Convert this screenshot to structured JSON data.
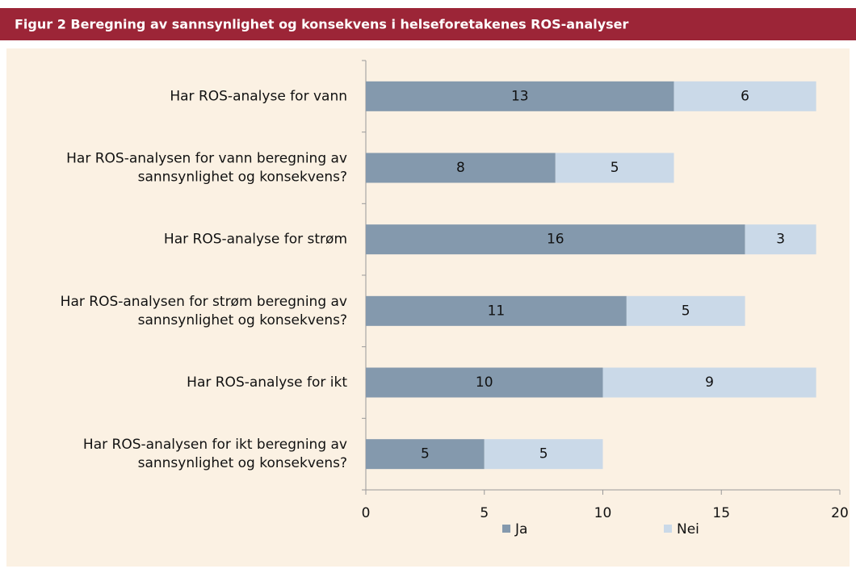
{
  "chart_data": {
    "type": "stacked_bar_horizontal",
    "title": "Figur 2 Beregning av sannsynlighet og konsekvens i helseforetakenes ROS-analyser",
    "categories": [
      [
        "Har ROS-analyse for vann"
      ],
      [
        "Har ROS-analysen for vann beregning av",
        "sannsynlighet og konsekvens?"
      ],
      [
        "Har ROS-analyse for strøm"
      ],
      [
        "Har ROS-analysen for strøm beregning av",
        "sannsynlighet og konsekvens?"
      ],
      [
        "Har ROS-analyse for ikt"
      ],
      [
        "Har ROS-analysen for ikt beregning av",
        "sannsynlighet og konsekvens?"
      ]
    ],
    "series": [
      {
        "name": "Ja",
        "color": "#8499ad",
        "values": [
          13,
          8,
          16,
          11,
          10,
          5
        ]
      },
      {
        "name": "Nei",
        "color": "#cad9e8",
        "values": [
          6,
          5,
          3,
          5,
          9,
          5
        ]
      }
    ],
    "xlim": [
      0,
      20
    ],
    "xticks": [
      0,
      5,
      10,
      15,
      20
    ],
    "legend": "bottom"
  }
}
